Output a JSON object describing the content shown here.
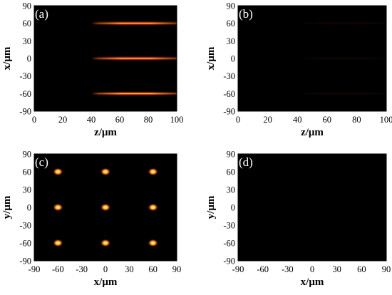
{
  "chart_data": [
    {
      "type": "heatmap",
      "panel_label": "(a)",
      "xlabel": "z/μm",
      "ylabel": "x/μm",
      "xlim": [
        0,
        100
      ],
      "ylim": [
        -90,
        90
      ],
      "xticks": [
        "0",
        "20",
        "40",
        "60",
        "80",
        "100"
      ],
      "yticks": [
        "90",
        "60",
        "30",
        "0",
        "-30",
        "-60",
        "-90"
      ],
      "features": [
        {
          "shape": "horizontal-beam",
          "center": [
            60,
            60
          ],
          "z_range": [
            40,
            100
          ],
          "peak_z": 65,
          "intensity": 1.0
        },
        {
          "shape": "horizontal-beam",
          "center": [
            60,
            0
          ],
          "z_range": [
            40,
            100
          ],
          "peak_z": 65,
          "intensity": 1.0
        },
        {
          "shape": "horizontal-beam",
          "center": [
            60,
            -60
          ],
          "z_range": [
            40,
            100
          ],
          "peak_z": 65,
          "intensity": 1.0
        }
      ]
    },
    {
      "type": "heatmap",
      "panel_label": "(b)",
      "xlabel": "z/μm",
      "ylabel": "x/μm",
      "xlim": [
        0,
        100
      ],
      "ylim": [
        -90,
        90
      ],
      "xticks": [
        "0",
        "20",
        "40",
        "60",
        "80",
        "100"
      ],
      "yticks": [
        "90",
        "60",
        "30",
        "0",
        "-30",
        "-60",
        "-90"
      ],
      "features": [
        {
          "shape": "horizontal-beam",
          "center": [
            60,
            60
          ],
          "z_range": [
            40,
            100
          ],
          "peak_z": 65,
          "intensity": 0.05
        },
        {
          "shape": "horizontal-beam",
          "center": [
            60,
            0
          ],
          "z_range": [
            40,
            100
          ],
          "peak_z": 65,
          "intensity": 0.05
        },
        {
          "shape": "horizontal-beam",
          "center": [
            60,
            -60
          ],
          "z_range": [
            40,
            100
          ],
          "peak_z": 65,
          "intensity": 0.05
        }
      ]
    },
    {
      "type": "heatmap",
      "panel_label": "(c)",
      "xlabel": "x/μm",
      "ylabel": "y/μm",
      "xlim": [
        -90,
        90
      ],
      "ylim": [
        -90,
        90
      ],
      "xticks": [
        "-90",
        "-60",
        "-30",
        "0",
        "30",
        "60",
        "90"
      ],
      "yticks": [
        "90",
        "60",
        "30",
        "0",
        "-30",
        "-60",
        "-90"
      ],
      "features": [
        {
          "shape": "spot",
          "center": [
            -60,
            60
          ],
          "intensity": 1.0
        },
        {
          "shape": "spot",
          "center": [
            0,
            60
          ],
          "intensity": 1.0
        },
        {
          "shape": "spot",
          "center": [
            60,
            60
          ],
          "intensity": 1.0
        },
        {
          "shape": "spot",
          "center": [
            -60,
            0
          ],
          "intensity": 1.0
        },
        {
          "shape": "spot",
          "center": [
            0,
            0
          ],
          "intensity": 1.0
        },
        {
          "shape": "spot",
          "center": [
            60,
            0
          ],
          "intensity": 1.0
        },
        {
          "shape": "spot",
          "center": [
            -60,
            -60
          ],
          "intensity": 1.0
        },
        {
          "shape": "spot",
          "center": [
            0,
            -60
          ],
          "intensity": 1.0
        },
        {
          "shape": "spot",
          "center": [
            60,
            -60
          ],
          "intensity": 1.0
        }
      ]
    },
    {
      "type": "heatmap",
      "panel_label": "(d)",
      "xlabel": "x/μm",
      "ylabel": "y/μm",
      "xlim": [
        -90,
        90
      ],
      "ylim": [
        -90,
        90
      ],
      "xticks": [
        "-90",
        "-60",
        "-30",
        "0",
        "30",
        "60",
        "90"
      ],
      "yticks": [
        "90",
        "60",
        "30",
        "0",
        "-30",
        "-60",
        "-90"
      ],
      "features": []
    }
  ]
}
